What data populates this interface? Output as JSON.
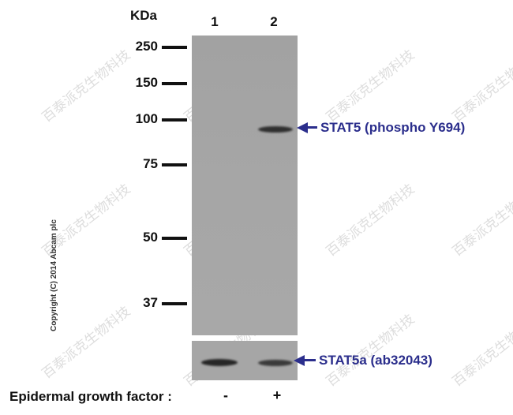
{
  "header": {
    "kda_label": "KDa",
    "lane_labels": [
      "1",
      "2"
    ]
  },
  "markers": [
    "250",
    "150",
    "100",
    "75",
    "50",
    "37"
  ],
  "targets": {
    "main": "STAT5 (phospho Y694)",
    "loading": "STAT5a (ab32043)"
  },
  "treatment": {
    "label": "Epidermal growth factor :",
    "lane1": "-",
    "lane2": "+"
  },
  "copyright": "Copyright (C) 2014 Abcam plc",
  "watermark_text": "百泰派克生物科技",
  "colors": {
    "arrow": "#2b2e8c",
    "membrane": "#a6a6a6",
    "band": "#2a2a2a"
  }
}
